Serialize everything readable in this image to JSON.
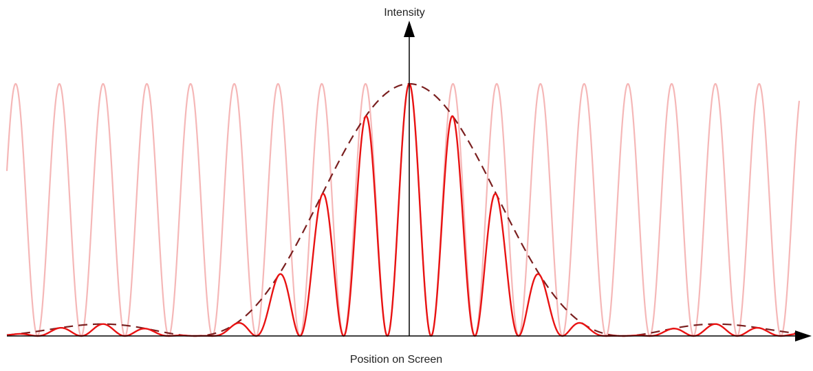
{
  "chart_data": {
    "type": "line",
    "x_label": "Position on Screen",
    "y_label": "Intensity",
    "x_range": [
      -9.2,
      9.2
    ],
    "y_range": [
      0,
      1
    ],
    "fringe_spacing": 1.0,
    "diffraction_zero_spacing": 4.9,
    "series": [
      {
        "role": "two-slit interference pattern (no envelope)",
        "color": "#f5b7b7",
        "style": "solid"
      },
      {
        "role": "diffraction envelope",
        "color": "#7a1f1f",
        "style": "dashed"
      },
      {
        "role": "combined intensity pattern",
        "color": "#e81212",
        "style": "solid"
      }
    ]
  },
  "colors": {
    "axis": "#000000",
    "background": "#ffffff"
  }
}
